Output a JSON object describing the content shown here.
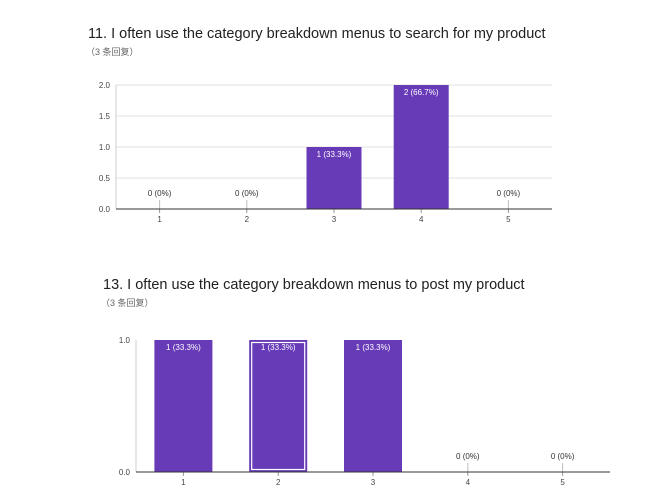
{
  "chart_data": [
    {
      "type": "bar",
      "title": "11. I often use the category breakdown menus to search for my product",
      "subtitle": "（3 条回复）",
      "categories": [
        "1",
        "2",
        "3",
        "4",
        "5"
      ],
      "values": [
        0,
        0,
        1,
        2,
        0
      ],
      "data_labels": [
        "0 (0%)",
        "0 (0%)",
        "1 (33.3%)",
        "2 (66.7%)",
        "0 (0%)"
      ],
      "y_ticks": [
        "0.0",
        "0.5",
        "1.0",
        "1.5",
        "2.0"
      ],
      "ylim": [
        0,
        2
      ],
      "grid": true,
      "bar_color": "#673ab7"
    },
    {
      "type": "bar",
      "title": "13. I often use the category breakdown menus to post my product",
      "subtitle": "（3 条回复）",
      "categories": [
        "1",
        "2",
        "3",
        "4",
        "5"
      ],
      "values": [
        1,
        1,
        1,
        0,
        0
      ],
      "data_labels": [
        "1 (33.3%)",
        "1 (33.3%)",
        "1 (33.3%)",
        "0 (0%)",
        "0 (0%)"
      ],
      "y_ticks": [
        "0.0",
        "1.0"
      ],
      "ylim": [
        0,
        1
      ],
      "grid": false,
      "bar_color": "#673ab7",
      "highlighted_bar": 1
    }
  ]
}
